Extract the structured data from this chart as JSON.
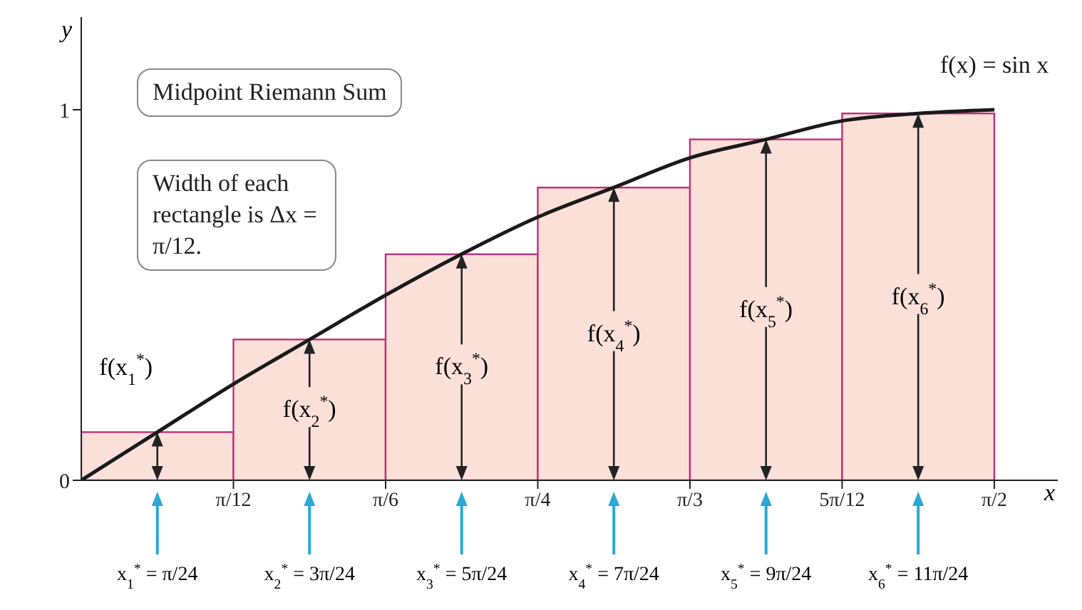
{
  "chart_data": {
    "type": "histogram",
    "xlabel": "x",
    "ylabel": "y",
    "bins": [
      0,
      0.2618,
      0.5236,
      0.7854,
      1.0472,
      1.309,
      1.5708
    ],
    "series": [
      {
        "color": "#fbe0d8",
        "values": [
          0.13,
          0.38,
          0.61,
          0.79,
          0.92,
          0.99
        ]
      },
      {
        "type": "line",
        "name": "f(x) = sin x",
        "color": "#1a1a1a",
        "x": [
          0,
          0.131,
          0.262,
          0.393,
          0.524,
          0.654,
          0.785,
          0.916,
          1.047,
          1.178,
          1.309,
          1.44,
          1.571
        ],
        "values": [
          0,
          0.13,
          0.26,
          0.38,
          0.5,
          0.61,
          0.71,
          0.79,
          0.87,
          0.92,
          0.97,
          0.99,
          1
        ]
      }
    ],
    "xlim": [
      0,
      1.68
    ],
    "ylim": [
      0,
      1.25
    ],
    "xticks": [
      {
        "value": 0.2618,
        "label": "π/12"
      },
      {
        "value": 0.5236,
        "label": "π/6"
      },
      {
        "value": 0.7854,
        "label": "π/4"
      },
      {
        "value": 1.0472,
        "label": "π/3"
      },
      {
        "value": 1.309,
        "label": "5π/12"
      },
      {
        "value": 1.5708,
        "label": "π/2"
      }
    ],
    "yticks": [
      0,
      1
    ],
    "annotations": [
      "Midpoint Riemann Sum",
      "Width of each rectangle is Δx = π/12.",
      {
        "text": "f(x$_{1}$$^{*}$)",
        "x": 0.1309,
        "y": 0.13
      },
      {
        "text": "f(x$_{2}$$^{*}$)",
        "x": 0.3927,
        "y": 0.38
      },
      {
        "text": "f(x$_{3}$$^{*}$)",
        "x": 0.6545,
        "y": 0.61
      },
      {
        "text": "f(x$_{4}$$^{*}$)",
        "x": 0.9163,
        "y": 0.79
      },
      {
        "text": "f(x$_{5}$$^{*}$)",
        "x": 1.1781,
        "y": 0.92
      },
      {
        "text": "f(x$_{6}$$^{*}$)",
        "x": 1.4399,
        "y": 0.99
      },
      "x$_{1}$$^{*}$ = π/24",
      "x$_{2}$$^{*}$ = 3π/24",
      "x$_{3}$$^{*}$ = 5π/24",
      "x$_{4}$$^{*}$ = 7π/24",
      "x$_{5}$$^{*}$ = 9π/24",
      "x$_{6}$$^{*}$ = 11π/24"
    ]
  }
}
